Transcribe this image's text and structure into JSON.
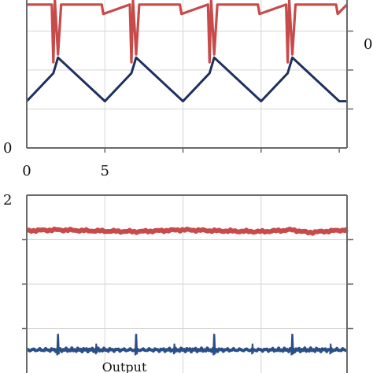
{
  "chart_data": [
    {
      "type": "line",
      "panel": "top",
      "x_tick_labels": [
        "0",
        "5"
      ],
      "x_ticks": [
        0,
        5
      ],
      "left_tick_labels": [
        "0"
      ],
      "right_tick_labels": [
        "0"
      ],
      "grid": true,
      "series": [
        {
          "color": "#c84b4b",
          "style": "square pulse train with spikes",
          "x": [
            0.0,
            1.6,
            1.7,
            1.8,
            2.0,
            2.2,
            2.3,
            4.8,
            4.9,
            6.6,
            6.7,
            6.8,
            7.0,
            7.2,
            7.3,
            9.8,
            9.9,
            11.6,
            11.7,
            11.8,
            12.0,
            12.2,
            12.3,
            14.8,
            14.9,
            16.6,
            16.7,
            16.8,
            17.0,
            17.2,
            17.3,
            19.8,
            19.9,
            20.5
          ],
          "y": [
            0.92,
            0.92,
            0.55,
            0.95,
            0.6,
            0.92,
            0.92,
            0.92,
            0.86,
            0.92,
            0.55,
            0.95,
            0.6,
            0.92,
            0.92,
            0.92,
            0.86,
            0.92,
            0.55,
            0.95,
            0.6,
            0.92,
            0.92,
            0.92,
            0.86,
            0.92,
            0.55,
            0.95,
            0.6,
            0.92,
            0.92,
            0.92,
            0.86,
            0.92
          ]
        },
        {
          "color": "#1f2f5e",
          "style": "triangle wave",
          "x": [
            0.0,
            1.7,
            2.0,
            5.0,
            6.7,
            7.0,
            10.0,
            11.7,
            12.0,
            15.0,
            16.7,
            17.0,
            20.0,
            20.5
          ],
          "y": [
            0.3,
            0.48,
            0.58,
            0.3,
            0.48,
            0.58,
            0.3,
            0.48,
            0.58,
            0.3,
            0.48,
            0.58,
            0.3,
            0.3
          ]
        }
      ]
    },
    {
      "type": "line",
      "panel": "bottom",
      "left_tick_labels": [
        "2"
      ],
      "annotation": "Output",
      "grid": true,
      "series": [
        {
          "color": "#c84b4b",
          "style": "flat noisy line",
          "x": [
            0,
            2,
            4,
            7,
            10,
            12,
            15,
            17,
            18,
            20.5
          ],
          "y": [
            1.6,
            1.61,
            1.6,
            1.59,
            1.61,
            1.6,
            1.59,
            1.61,
            1.58,
            1.61
          ]
        },
        {
          "color": "#2a4f86",
          "style": "flat noisy line with periodic spikes",
          "baseline": 0.26,
          "spikes_x": [
            2.0,
            7.0,
            12.0,
            17.0
          ],
          "spike_height": 0.18
        }
      ]
    }
  ]
}
